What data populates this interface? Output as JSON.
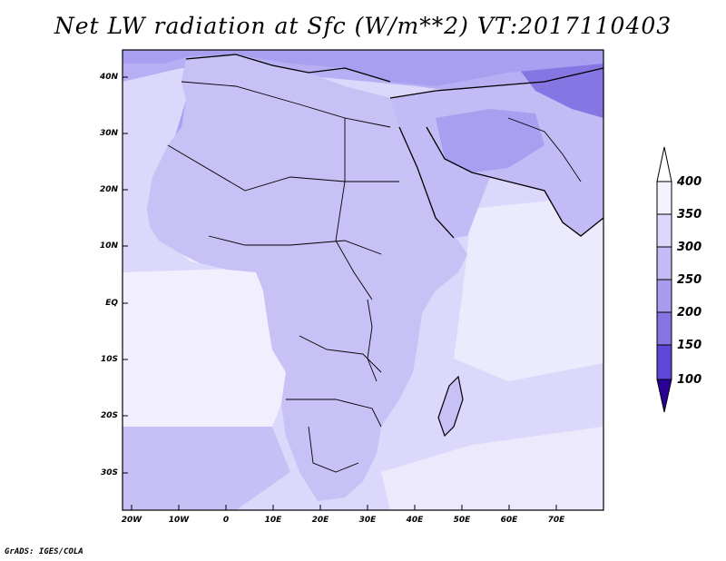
{
  "title": "Net LW radiation at Sfc (W/m**2) VT:2017110403",
  "footer": "GrADS: IGES/COLA",
  "map": {
    "lat_labels": [
      "40N",
      "30N",
      "20N",
      "10N",
      "EQ",
      "10S",
      "20S",
      "30S"
    ],
    "lon_labels": [
      "20W",
      "10W",
      "0",
      "10E",
      "20E",
      "30E",
      "40E",
      "50E",
      "60E",
      "70E"
    ],
    "extent": {
      "lon_min": -22,
      "lon_max": 81,
      "lat_min": -37,
      "lat_max": 45
    }
  },
  "colorbar": {
    "labels": [
      "400",
      "350",
      "300",
      "250",
      "200",
      "150",
      "100"
    ],
    "colors": [
      "#f4f2fe",
      "#dcd8fb",
      "#c2bbf5",
      "#a79cef",
      "#8676e4",
      "#6046d6",
      "#3a17bc",
      "#2a0096"
    ]
  },
  "colors": {
    "ocean_light": "#e4e2fc",
    "ocean_mid": "#cdc7f7",
    "land_low": "#f7f6ff",
    "land_mid": "#c8c1f6",
    "land_high": "#a99ff0",
    "land_peak": "#8d80e8"
  }
}
